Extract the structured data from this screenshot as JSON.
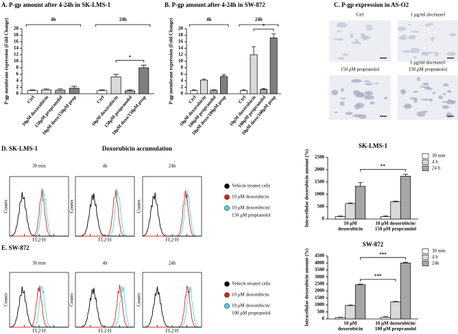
{
  "chart_data": [
    {
      "type": "bar",
      "title": "A.  P-gp amount after 4-24h in SK-LMS-1",
      "y_label": "P-gp membrane expression (Fold Change)",
      "group_labels": [
        "4h",
        "24h"
      ],
      "categories": [
        "Ctrl",
        "10μM doxorubicin",
        "150μM propranolol",
        "10μM doxo/150μM prop",
        "Ctrl",
        "10μM doxorubicin",
        "150μM propranolol",
        "10μM doxo/150μM prop"
      ],
      "values": [
        1,
        1.2,
        1.1,
        1.7,
        1,
        5.2,
        0.9,
        8
      ],
      "errors": [
        0.2,
        0.3,
        0.4,
        0.6,
        0.2,
        0.8,
        0.3,
        0.8
      ],
      "colors": [
        "#ffffff",
        "#d9d9d9",
        "#a6a6a6",
        "#7f7f7f",
        "#ffffff",
        "#d9d9d9",
        "#a6a6a6",
        "#7f7f7f"
      ],
      "ylim": [
        0,
        20
      ],
      "yticks": [
        0,
        2,
        4,
        6,
        8,
        10,
        12,
        14,
        16,
        18,
        20
      ],
      "annotations": [
        "*"
      ]
    },
    {
      "type": "bar",
      "title": "B.  P-gp amount after 4-24h in SW-872",
      "y_label": "P-gp membrane expression (Fold Change)",
      "group_labels": [
        "4h",
        "24h"
      ],
      "categories": [
        "Ctrl",
        "10μM doxorubicin",
        "100μM propranolol",
        "10μM doxo/100μM prop",
        "Ctrl",
        "10μM doxorubicin",
        "100μM propranolol",
        "10μM doxo/100μM prop"
      ],
      "values": [
        1,
        4.2,
        1.1,
        5.3,
        1,
        12,
        1.4,
        17.2
      ],
      "errors": [
        0.2,
        0.3,
        0.1,
        0.5,
        0.2,
        2.5,
        0.2,
        1.2
      ],
      "colors": [
        "#ffffff",
        "#d9d9d9",
        "#a6a6a6",
        "#7f7f7f",
        "#ffffff",
        "#d9d9d9",
        "#a6a6a6",
        "#7f7f7f"
      ],
      "ylim": [
        0,
        20
      ],
      "yticks": [
        0,
        2,
        4,
        6,
        8,
        10,
        12,
        14,
        16,
        18,
        20
      ],
      "annotations": [
        "*"
      ]
    },
    {
      "type": "bar",
      "title": "SK-LMS-1",
      "y_label": "Intracellular doxorubicin amount (%)",
      "categories": [
        [
          "10 μM",
          "doxorubicin"
        ],
        [
          "10 μM doxorubicin/",
          "150 μM propranolol"
        ]
      ],
      "series": [
        {
          "name": "30 min",
          "color": "#ffffff",
          "values": [
            100,
            100
          ],
          "errors": [
            20,
            20
          ]
        },
        {
          "name": "4 h",
          "color": "#d9d9d9",
          "values": [
            620,
            700
          ],
          "errors": [
            40,
            20
          ]
        },
        {
          "name": "24 h",
          "color": "#a6a6a6",
          "values": [
            1330,
            1740
          ],
          "errors": [
            150,
            80
          ]
        }
      ],
      "ylim": [
        0,
        2500
      ],
      "yticks": [
        0,
        500,
        1000,
        1500,
        2000,
        2500
      ],
      "annotations": [
        "**"
      ]
    },
    {
      "type": "bar",
      "title": "SW-872",
      "y_label": "Intracellular doxorubicin amount (%)",
      "categories": [
        [
          "10 μM",
          "doxorubicin"
        ],
        [
          "10 μM doxorubicin/",
          "100 μM propranolol"
        ]
      ],
      "series": [
        {
          "name": "30 min",
          "color": "#ffffff",
          "values": [
            100,
            120
          ],
          "errors": [
            30,
            30
          ]
        },
        {
          "name": "4 h",
          "color": "#d9d9d9",
          "values": [
            950,
            1220
          ],
          "errors": [
            40,
            40
          ]
        },
        {
          "name": "24h",
          "color": "#a6a6a6",
          "values": [
            2450,
            4000
          ],
          "errors": [
            40,
            50
          ]
        }
      ],
      "ylim": [
        0,
        4500
      ],
      "yticks": [
        0,
        500,
        1000,
        1500,
        2000,
        2500,
        3000,
        3500,
        4000,
        4500
      ],
      "annotations": [
        "***",
        "***"
      ]
    }
  ],
  "panel_c": {
    "title": "C.  P-gp expression in AS-O2",
    "images": [
      [
        "Ctrl"
      ],
      [
        "1 μg/ml docetaxel"
      ],
      [
        "150 μM propranolol"
      ],
      [
        "1 μg/ml docetaxel/",
        "150 μM propranolol"
      ]
    ]
  },
  "flow_panels": [
    {
      "title": "D.  SK-LMS-1",
      "subtitle": "Doxorubicin accumulation",
      "times": [
        "30 min",
        "4h",
        "24h"
      ],
      "y_label": "Counts",
      "x_label": "FL2-H",
      "legend": [
        {
          "label": [
            "Vehicle treated cells"
          ],
          "color": "#000000"
        },
        {
          "label": [
            "10 μM doxorubicin"
          ],
          "color": "#e0201b"
        },
        {
          "label": [
            "10 μM doxorubicin/",
            "150 μM propranolol"
          ],
          "color": "#3fe0e0"
        }
      ]
    },
    {
      "title": "E.  SW-872",
      "times": [
        "30 min",
        "4h",
        "24h"
      ],
      "y_label": "Counts",
      "x_label": "FL2-H",
      "legend": [
        {
          "label": [
            "Vehicle treated cells"
          ],
          "color": "#000000"
        },
        {
          "label": [
            "10 μM doxorubicin"
          ],
          "color": "#e0201b"
        },
        {
          "label": [
            "10 μM doxorubicin/",
            "100 μM propranolol"
          ],
          "color": "#3fe0e0"
        }
      ]
    }
  ]
}
